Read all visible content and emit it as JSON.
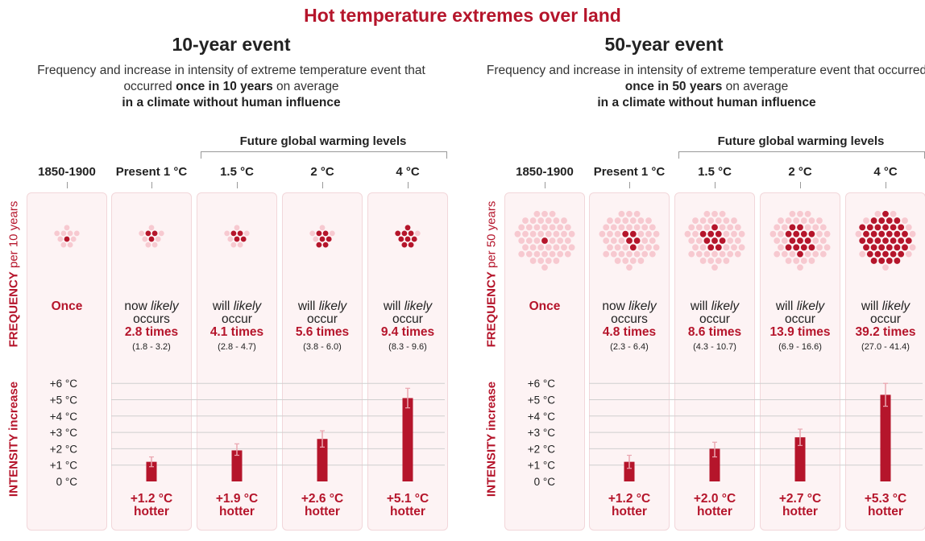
{
  "title": "Hot temperature extremes over land",
  "colors": {
    "accent": "#b5152b",
    "dot_light": "#f7c9d0",
    "panel_bg": "#fdf3f4",
    "error_bar": "#eaa6b0"
  },
  "panels": [
    {
      "title": "10-year event",
      "subtitle_pre": "Frequency and increase in intensity of extreme temperature event that occurred ",
      "subtitle_bold": "once in 10 years",
      "subtitle_post": " on average",
      "subtitle_line3": "in a climate without human influence",
      "future_label": "Future global warming levels",
      "freq_axis_title": "FREQUENCY",
      "freq_axis_suffix": " per 10 years",
      "intensity_axis_title": "INTENSITY increase",
      "columns": [
        {
          "header": "1850-1900",
          "once": "Once",
          "total_dots": 10,
          "red_dots": 1
        },
        {
          "header": "Present 1 °C",
          "prefix": "now",
          "likely": "likely",
          "verb": "occurs",
          "times": "2.8 times",
          "range": "(1.8 - 3.2)",
          "total_dots": 10,
          "red_dots": 3,
          "hotter_value": "+1.2 °C",
          "hotter_word": "hotter"
        },
        {
          "header": "1.5 °C",
          "prefix": "will",
          "likely": "likely",
          "verb": "occur",
          "times": "4.1 times",
          "range": "(2.8 - 4.7)",
          "total_dots": 10,
          "red_dots": 4,
          "hotter_value": "+1.9 °C",
          "hotter_word": "hotter"
        },
        {
          "header": "2 °C",
          "prefix": "will",
          "likely": "likely",
          "verb": "occur",
          "times": "5.6 times",
          "range": "(3.8 - 6.0)",
          "total_dots": 10,
          "red_dots": 6,
          "hotter_value": "+2.6 °C",
          "hotter_word": "hotter"
        },
        {
          "header": "4 °C",
          "prefix": "will",
          "likely": "likely",
          "verb": "occur",
          "times": "9.4 times",
          "range": "(8.3 - 9.6)",
          "total_dots": 10,
          "red_dots": 9,
          "hotter_value": "+5.1 °C",
          "hotter_word": "hotter"
        }
      ]
    },
    {
      "title": "50-year event",
      "subtitle_pre": "Frequency and increase in intensity of extreme temperature event that occurred ",
      "subtitle_bold": "once in 50 years",
      "subtitle_post": " on average",
      "subtitle_line3": "in a climate without human influence",
      "future_label": "Future global warming levels",
      "freq_axis_title": "FREQUENCY",
      "freq_axis_suffix": " per 50 years",
      "intensity_axis_title": "INTENSITY increase",
      "columns": [
        {
          "header": "1850-1900",
          "once": "Once",
          "total_dots": 50,
          "red_dots": 1
        },
        {
          "header": "Present 1 °C",
          "prefix": "now",
          "likely": "likely",
          "verb": "occurs",
          "times": "4.8 times",
          "range": "(2.3 - 6.4)",
          "total_dots": 50,
          "red_dots": 5,
          "hotter_value": "+1.2 °C",
          "hotter_word": "hotter"
        },
        {
          "header": "1.5 °C",
          "prefix": "will",
          "likely": "likely",
          "verb": "occur",
          "times": "8.6 times",
          "range": "(4.3 - 10.7)",
          "total_dots": 50,
          "red_dots": 9,
          "hotter_value": "+2.0 °C",
          "hotter_word": "hotter"
        },
        {
          "header": "2 °C",
          "prefix": "will",
          "likely": "likely",
          "verb": "occur",
          "times": "13.9 times",
          "range": "(6.9 - 16.6)",
          "total_dots": 50,
          "red_dots": 14,
          "hotter_value": "+2.7 °C",
          "hotter_word": "hotter"
        },
        {
          "header": "4 °C",
          "prefix": "will",
          "likely": "likely",
          "verb": "occur",
          "times": "39.2 times",
          "range": "(27.0 - 41.4)",
          "total_dots": 50,
          "red_dots": 39,
          "hotter_value": "+5.3 °C",
          "hotter_word": "hotter"
        }
      ]
    }
  ],
  "chart_data": [
    {
      "type": "bar",
      "title": "10-year event",
      "ylabel": "INTENSITY increase",
      "categories": [
        "1850-1900",
        "Present 1 °C",
        "1.5 °C",
        "2 °C",
        "4 °C"
      ],
      "values": [
        0,
        1.2,
        1.9,
        2.6,
        5.1
      ],
      "error_low": [
        0,
        0.9,
        1.6,
        2.1,
        4.5
      ],
      "error_high": [
        0,
        1.5,
        2.3,
        3.1,
        5.7
      ],
      "ylim": [
        0,
        6
      ],
      "yticks": [
        "0 °C",
        "+1 °C",
        "+2 °C",
        "+3 °C",
        "+4 °C",
        "+5 °C",
        "+6 °C"
      ]
    },
    {
      "type": "bar",
      "title": "50-year event",
      "ylabel": "INTENSITY increase",
      "categories": [
        "1850-1900",
        "Present 1 °C",
        "1.5 °C",
        "2 °C",
        "4 °C"
      ],
      "values": [
        0,
        1.2,
        2.0,
        2.7,
        5.3
      ],
      "error_low": [
        0,
        0.8,
        1.5,
        2.2,
        4.6
      ],
      "error_high": [
        0,
        1.6,
        2.4,
        3.2,
        6.0
      ],
      "ylim": [
        0,
        6
      ],
      "yticks": [
        "0 °C",
        "+1 °C",
        "+2 °C",
        "+3 °C",
        "+4 °C",
        "+5 °C",
        "+6 °C"
      ]
    }
  ]
}
